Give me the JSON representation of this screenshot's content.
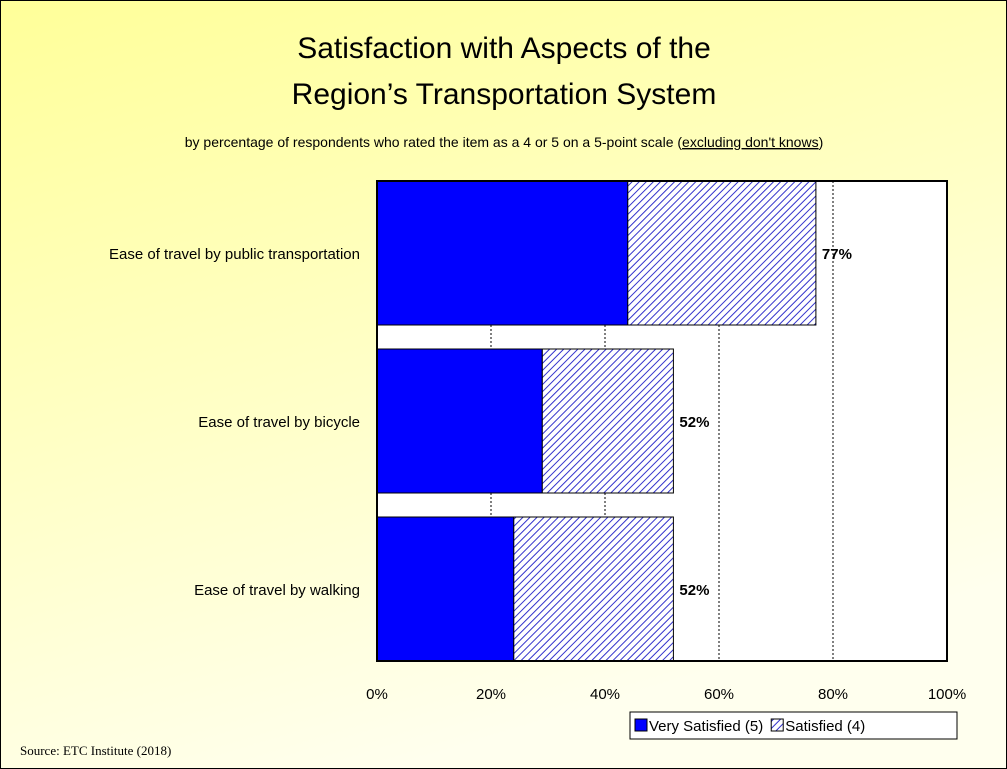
{
  "chart_data": {
    "type": "hbar-stacked",
    "title": [
      "Satisfaction with Aspects of the",
      "Region’s Transportation System"
    ],
    "subtitle": [
      "by percentage of respondents who rated the item as a 4 or 5 on a 5-point scale (",
      "excluding don't knows",
      ")"
    ],
    "categories": [
      "Ease of travel by public transportation",
      "Ease of travel by bicycle",
      "Ease of travel by walking"
    ],
    "series": [
      {
        "name": "Very Satisfied (5)",
        "color": "#0000ff",
        "values": [
          44,
          29,
          24
        ]
      },
      {
        "name": "Satisfied (4)",
        "color": "#3333cc",
        "pattern": "hatch",
        "values": [
          33,
          23,
          28
        ]
      }
    ],
    "totals": {
      "values": [
        77,
        52,
        52
      ],
      "value_labels": [
        "77%",
        "52%",
        "52%"
      ]
    },
    "xlim": [
      0,
      100
    ],
    "xticks": [
      {
        "value": 0,
        "label": "0%"
      },
      {
        "value": 20,
        "label": "20%"
      },
      {
        "value": 40,
        "label": "40%"
      },
      {
        "value": 60,
        "label": "60%"
      },
      {
        "value": 80,
        "label": "80%"
      },
      {
        "value": 100,
        "label": "100%"
      }
    ],
    "grid": true,
    "legend": "bottom-right",
    "source": "Source:  ETC Institute (2018)"
  }
}
